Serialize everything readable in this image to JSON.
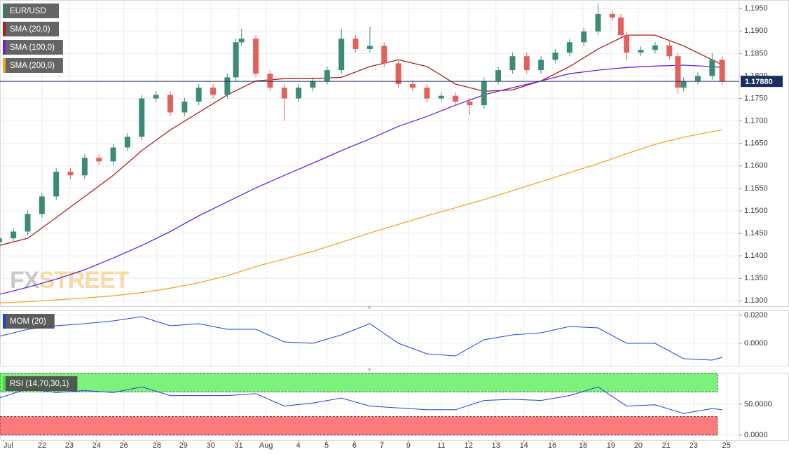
{
  "chart_data": [
    {
      "type": "candlestick",
      "title": "EUR/USD",
      "title_color": "#2a7f6f",
      "up_color": "#3d8b76",
      "down_color": "#e2615c",
      "x": [
        -0.5,
        0,
        0.5,
        1,
        1.5,
        2,
        2.5,
        3,
        3.5,
        4,
        4.5,
        5,
        5.5,
        6,
        6.5,
        7,
        7.5,
        7.8,
        8,
        8.5,
        9,
        9.5,
        10,
        10.5,
        11,
        11.5,
        12,
        12.5,
        13,
        13.5,
        14,
        14.5,
        15,
        15.5,
        16,
        16.5,
        17,
        17.5,
        18,
        18.5,
        19,
        19.5,
        20,
        20.5,
        21,
        21.3,
        21.5,
        22,
        22.5,
        23,
        23.3,
        23.5,
        24,
        24.5,
        24.85
      ],
      "open": [
        1.143,
        1.1439,
        1.1454,
        1.1493,
        1.1532,
        1.1587,
        1.1579,
        1.1618,
        1.161,
        1.1641,
        1.1665,
        1.175,
        1.1758,
        1.1719,
        1.1743,
        1.1774,
        1.1758,
        1.1797,
        1.1875,
        1.1883,
        1.1805,
        1.1774,
        1.175,
        1.1774,
        1.1789,
        1.1813,
        1.1883,
        1.186,
        1.1867,
        1.1828,
        1.1782,
        1.1774,
        1.175,
        1.1756,
        1.1743,
        1.1735,
        1.1789,
        1.1813,
        1.1844,
        1.1813,
        1.1836,
        1.1852,
        1.1875,
        1.1899,
        1.1938,
        1.193,
        1.1891,
        1.1852,
        1.1858,
        1.1868,
        1.1844,
        1.1774,
        1.1789,
        1.18,
        1.1836
      ],
      "high": [
        1.1447,
        1.1462,
        1.1501,
        1.154,
        1.1595,
        1.1595,
        1.1626,
        1.1626,
        1.1649,
        1.1673,
        1.1758,
        1.1766,
        1.1766,
        1.1751,
        1.1782,
        1.1782,
        1.1805,
        1.1883,
        1.1905,
        1.1891,
        1.1813,
        1.1782,
        1.1782,
        1.1797,
        1.1821,
        1.1905,
        1.1891,
        1.191,
        1.1875,
        1.1836,
        1.179,
        1.1782,
        1.1764,
        1.1764,
        1.1751,
        1.1797,
        1.1821,
        1.1852,
        1.1852,
        1.1844,
        1.186,
        1.1883,
        1.1907,
        1.1962,
        1.1946,
        1.1938,
        1.1899,
        1.1866,
        1.1876,
        1.188,
        1.1852,
        1.1797,
        1.1808,
        1.185,
        1.1844
      ],
      "low": [
        1.1422,
        1.1431,
        1.1446,
        1.1485,
        1.1524,
        1.1571,
        1.1571,
        1.1602,
        1.1602,
        1.1633,
        1.1657,
        1.1742,
        1.1711,
        1.1711,
        1.1735,
        1.175,
        1.175,
        1.1789,
        1.1867,
        1.1797,
        1.1766,
        1.17,
        1.1742,
        1.1766,
        1.1781,
        1.1805,
        1.1852,
        1.1852,
        1.182,
        1.1774,
        1.1766,
        1.1742,
        1.1742,
        1.1735,
        1.1713,
        1.1727,
        1.1781,
        1.1805,
        1.1805,
        1.1805,
        1.1828,
        1.1844,
        1.1867,
        1.1891,
        1.1922,
        1.1883,
        1.1835,
        1.1844,
        1.185,
        1.1836,
        1.176,
        1.1766,
        1.1781,
        1.1792,
        1.178
      ],
      "close": [
        1.1439,
        1.1454,
        1.1493,
        1.1532,
        1.1587,
        1.1579,
        1.1618,
        1.161,
        1.1641,
        1.1665,
        1.175,
        1.1758,
        1.1719,
        1.1743,
        1.1774,
        1.1758,
        1.1797,
        1.1875,
        1.1883,
        1.1805,
        1.1774,
        1.175,
        1.1774,
        1.1789,
        1.1813,
        1.1883,
        1.186,
        1.1867,
        1.1828,
        1.1782,
        1.1774,
        1.175,
        1.1756,
        1.1743,
        1.1735,
        1.1789,
        1.1813,
        1.1844,
        1.1813,
        1.1836,
        1.1852,
        1.1875,
        1.1899,
        1.1938,
        1.193,
        1.1891,
        1.1852,
        1.1858,
        1.1868,
        1.1844,
        1.1774,
        1.1789,
        1.18,
        1.1836,
        1.1788
      ],
      "series": [
        {
          "name": "SMA (20,0)",
          "color": "#b01e1e",
          "x": [
            -0.5,
            0.5,
            1.5,
            2.5,
            3.5,
            4.5,
            5.5,
            6.5,
            7.5,
            8.5,
            9.5,
            10.5,
            11.5,
            12.5,
            13.5,
            14.5,
            15.5,
            16.5,
            17.5,
            18.5,
            19.5,
            20.5,
            21.5,
            22.5,
            23.5,
            24.5,
            24.85
          ],
          "values": [
            1.1423,
            1.1439,
            1.1485,
            1.1532,
            1.1579,
            1.1634,
            1.168,
            1.1719,
            1.1758,
            1.1789,
            1.1794,
            1.1794,
            1.1797,
            1.1821,
            1.1836,
            1.1821,
            1.1782,
            1.1766,
            1.1769,
            1.1789,
            1.1821,
            1.186,
            1.1891,
            1.1891,
            1.1867,
            1.1836,
            1.1825
          ]
        },
        {
          "name": "SMA (100,0)",
          "color": "#6a22d6",
          "x": [
            -0.5,
            0.5,
            1.5,
            2.5,
            3.5,
            4.5,
            5.5,
            6.5,
            7.5,
            8.5,
            9.5,
            10.5,
            11.5,
            12.5,
            13.5,
            14.5,
            15.5,
            16.5,
            17.5,
            18.5,
            19.5,
            20.5,
            21.5,
            22.5,
            23.5,
            24.5,
            24.85
          ],
          "values": [
            1.1314,
            1.133,
            1.1348,
            1.1369,
            1.1395,
            1.1423,
            1.1454,
            1.1489,
            1.152,
            1.1551,
            1.1579,
            1.1606,
            1.1634,
            1.166,
            1.1688,
            1.171,
            1.1735,
            1.1758,
            1.1774,
            1.1789,
            1.1805,
            1.1813,
            1.1819,
            1.1822,
            1.1824,
            1.1821,
            1.1819
          ]
        },
        {
          "name": "SMA (200,0)",
          "color": "#f5a623",
          "x": [
            -0.5,
            0.5,
            1.5,
            2.5,
            3.5,
            4.5,
            5.5,
            6.5,
            7.5,
            8.5,
            9.5,
            10.5,
            11.5,
            12.5,
            13.5,
            14.5,
            15.5,
            16.5,
            17.5,
            18.5,
            19.5,
            20.5,
            21.5,
            22.5,
            23.5,
            24.5,
            24.85
          ],
          "values": [
            1.1295,
            1.1298,
            1.1302,
            1.1306,
            1.1311,
            1.1318,
            1.1328,
            1.134,
            1.1356,
            1.1376,
            1.1393,
            1.141,
            1.143,
            1.1451,
            1.147,
            1.1489,
            1.1507,
            1.1525,
            1.1545,
            1.1565,
            1.1585,
            1.1605,
            1.1627,
            1.1648,
            1.1664,
            1.1676,
            1.168
          ]
        }
      ],
      "last_price": {
        "value": 1.1788,
        "label": "1.17880"
      },
      "last_price_color": "#1b2f5e",
      "watermark": [
        "FX",
        "STREET"
      ],
      "xlim": [
        -0.47,
        25.45
      ],
      "ylim": [
        1.1288,
        1.1969
      ],
      "yticks": [
        {
          "value": 1.13,
          "label": "1.1300"
        },
        {
          "value": 1.135,
          "label": "1.1350"
        },
        {
          "value": 1.14,
          "label": "1.1400"
        },
        {
          "value": 1.145,
          "label": "1.1450"
        },
        {
          "value": 1.15,
          "label": "1.1500"
        },
        {
          "value": 1.155,
          "label": "1.1550"
        },
        {
          "value": 1.16,
          "label": "1.1600"
        },
        {
          "value": 1.165,
          "label": "1.1650"
        },
        {
          "value": 1.17,
          "label": "1.1700"
        },
        {
          "value": 1.175,
          "label": "1.1750"
        },
        {
          "value": 1.18,
          "label": "1.1800"
        },
        {
          "value": 1.185,
          "label": "1.1850"
        },
        {
          "value": 1.19,
          "label": "1.1900"
        },
        {
          "value": 1.195,
          "label": "1.1950"
        }
      ],
      "grid": true
    },
    {
      "type": "line",
      "title": "MOM (20)",
      "color": "#2040d8",
      "x": [
        -0.5,
        0.5,
        1.5,
        2.5,
        3.5,
        4.5,
        5.5,
        6.5,
        7.5,
        8.5,
        9.5,
        10.5,
        11.5,
        12.5,
        13.5,
        14.5,
        15.5,
        16.5,
        17.5,
        18.5,
        19.5,
        20.5,
        21.5,
        22.5,
        23.5,
        24.5,
        24.85
      ],
      "values": [
        0.005,
        0.01,
        0.0125,
        0.014,
        0.016,
        0.019,
        0.0125,
        0.014,
        0.01,
        0.01,
        0.001,
        0,
        0.006,
        0.014,
        0,
        -0.0075,
        -0.009,
        0.0025,
        0.006,
        0.0075,
        0.012,
        0.011,
        0,
        0,
        -0.011,
        -0.012,
        -0.01
      ],
      "xlim": [
        -0.47,
        25.45
      ],
      "ylim": [
        -0.016,
        0.0235
      ],
      "yticks": [
        {
          "value": 0,
          "label": "0.0000"
        },
        {
          "value": 0.02,
          "label": "0.0200"
        }
      ],
      "grid": true
    },
    {
      "type": "line",
      "title": "RSI (14,70,30,1)",
      "color": "#2040d8",
      "title_color": "#3ee03e",
      "x": [
        -0.5,
        0.5,
        1.5,
        2.5,
        3.5,
        4.5,
        5.5,
        6.5,
        7.5,
        8.5,
        9.5,
        10.5,
        11.5,
        12.5,
        13.5,
        14.5,
        15.5,
        16.5,
        17.5,
        18.5,
        19.5,
        20.5,
        21.5,
        22.5,
        23.5,
        24.5,
        24.85
      ],
      "values": [
        60,
        75,
        69,
        72,
        69,
        78,
        64,
        64,
        64,
        67,
        47,
        52,
        60,
        47,
        44,
        41,
        41,
        56,
        58,
        56,
        64,
        78,
        47,
        49,
        35,
        43,
        41
      ],
      "bands": [
        {
          "range": [
            70,
            100
          ],
          "color": "#7cf27c"
        },
        {
          "range": [
            0,
            30
          ],
          "color": "#ff7b7b"
        }
      ],
      "xlim": [
        -0.47,
        25.45
      ],
      "ylim": [
        -8,
        101
      ],
      "yticks": [
        {
          "value": 0,
          "label": "0.0000"
        },
        {
          "value": 50,
          "label": "50.0000"
        }
      ],
      "xticks": [
        {
          "value": -0.35,
          "label": "Jul"
        },
        {
          "value": 1,
          "label": "22"
        },
        {
          "value": 1.96,
          "label": "23"
        },
        {
          "value": 2.92,
          "label": "24"
        },
        {
          "value": 3.87,
          "label": "26"
        },
        {
          "value": 5.03,
          "label": "28"
        },
        {
          "value": 5.96,
          "label": "29"
        },
        {
          "value": 6.92,
          "label": "30"
        },
        {
          "value": 7.9,
          "label": "31"
        },
        {
          "value": 8.86,
          "label": "Aug"
        },
        {
          "value": 9.99,
          "label": "4"
        },
        {
          "value": 10.98,
          "label": "5"
        },
        {
          "value": 11.96,
          "label": "6"
        },
        {
          "value": 12.92,
          "label": "7"
        },
        {
          "value": 13.85,
          "label": "9"
        },
        {
          "value": 15,
          "label": "11"
        },
        {
          "value": 15.96,
          "label": "12"
        },
        {
          "value": 16.92,
          "label": "13"
        },
        {
          "value": 17.9,
          "label": "14"
        },
        {
          "value": 18.89,
          "label": "16"
        },
        {
          "value": 19.97,
          "label": "18"
        },
        {
          "value": 20.95,
          "label": "19"
        },
        {
          "value": 21.91,
          "label": "20"
        },
        {
          "value": 22.89,
          "label": "21"
        },
        {
          "value": 23.85,
          "label": "23"
        },
        {
          "value": 25,
          "label": "25"
        }
      ],
      "grid": true
    }
  ]
}
